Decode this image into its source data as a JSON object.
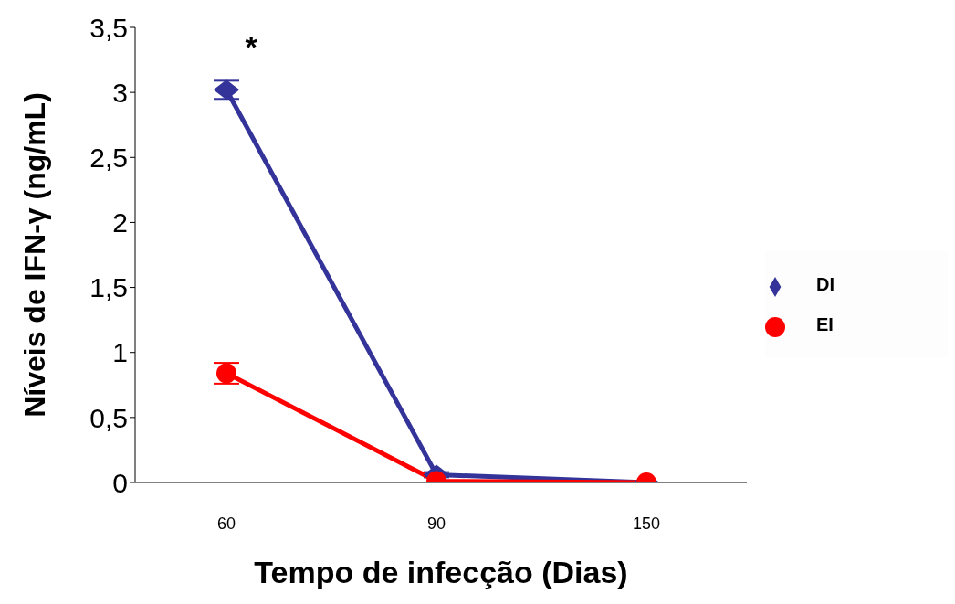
{
  "chart_data": {
    "type": "line",
    "xlabel": "Tempo de infecção (Dias)",
    "ylabel": "Níveis de IFN-γ (ng/mL)",
    "categories": [
      "60",
      "90",
      "150"
    ],
    "series": [
      {
        "name": "DI",
        "color": "#333399",
        "marker": "diamond",
        "values": [
          3.02,
          0.06,
          0.0
        ],
        "errors": [
          0.07,
          0.02,
          null
        ]
      },
      {
        "name": "EI",
        "color": "#ff0000",
        "marker": "circle",
        "values": [
          0.84,
          0.01,
          0.0
        ],
        "errors": [
          0.08,
          null,
          null
        ]
      }
    ],
    "ylim": [
      0,
      3.5
    ],
    "yticks": [
      0,
      {
        "value": 0.5,
        "label": "0,5"
      },
      1,
      {
        "value": 1.5,
        "label": "1,5"
      },
      2,
      {
        "value": 2.5,
        "label": "2,5"
      },
      3,
      {
        "value": 3.5,
        "label": "3,5"
      }
    ],
    "annotations": [
      "*"
    ],
    "legend": "right",
    "grid": false
  }
}
